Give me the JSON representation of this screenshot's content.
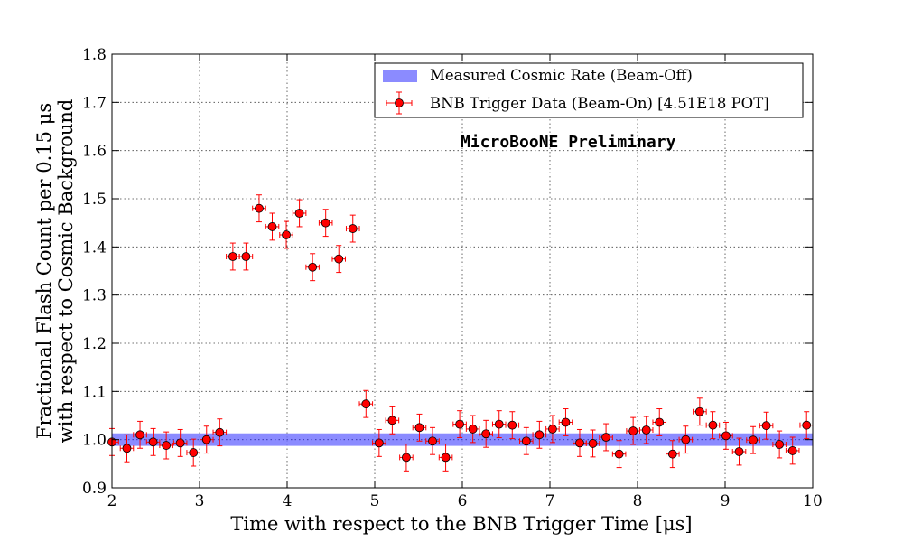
{
  "chart_data": {
    "type": "scatter",
    "xlabel": "Time with respect to the BNB Trigger Time [μs]",
    "ylabel_line1": "Fractional Flash Count per 0.15 μs",
    "ylabel_line2": "with respect to Cosmic Background",
    "xlim": [
      2,
      10
    ],
    "ylim": [
      0.9,
      1.8
    ],
    "xticks": [
      "2",
      "3",
      "4",
      "5",
      "6",
      "7",
      "8",
      "9",
      "10"
    ],
    "yticks": [
      "0.9",
      "1.0",
      "1.1",
      "1.2",
      "1.3",
      "1.4",
      "1.5",
      "1.6",
      "1.7",
      "1.8"
    ],
    "grid": true,
    "legend_position": "top-right",
    "annotation": "MicroBooNE Preliminary",
    "band": {
      "name": "Measured Cosmic Rate (Beam-Off)",
      "center": 1.0,
      "low": 0.987,
      "high": 1.013,
      "color": "#7777ff"
    },
    "series": [
      {
        "name": "BNB Trigger Data (Beam-On) [4.51E18 POT]",
        "color": "#ff0000",
        "x_bin_halfwidth": 0.075,
        "y_error": 0.028,
        "x": [
          2.0,
          2.17,
          2.32,
          2.47,
          2.62,
          2.78,
          2.93,
          3.08,
          3.23,
          3.38,
          3.53,
          3.68,
          3.83,
          3.99,
          4.14,
          4.29,
          4.44,
          4.59,
          4.75,
          4.9,
          5.05,
          5.2,
          5.36,
          5.51,
          5.66,
          5.81,
          5.97,
          6.12,
          6.27,
          6.42,
          6.57,
          6.73,
          6.88,
          7.03,
          7.18,
          7.34,
          7.49,
          7.64,
          7.79,
          7.95,
          8.1,
          8.25,
          8.4,
          8.55,
          8.71,
          8.86,
          9.01,
          9.16,
          9.32,
          9.47,
          9.62,
          9.77,
          9.93
        ],
        "y": [
          0.995,
          0.982,
          1.01,
          0.995,
          0.988,
          0.993,
          0.973,
          1.0,
          1.015,
          1.38,
          1.38,
          1.48,
          1.442,
          1.425,
          1.47,
          1.358,
          1.45,
          1.375,
          1.438,
          1.074,
          0.993,
          1.04,
          0.963,
          1.025,
          0.997,
          0.963,
          1.032,
          1.022,
          1.012,
          1.032,
          1.03,
          0.997,
          1.01,
          1.022,
          1.036,
          0.993,
          0.992,
          1.005,
          0.97,
          1.018,
          1.02,
          1.036,
          0.97,
          1.0,
          1.058,
          1.03,
          1.008,
          0.975,
          0.999,
          1.029,
          0.99,
          0.977,
          1.03
        ]
      }
    ]
  }
}
